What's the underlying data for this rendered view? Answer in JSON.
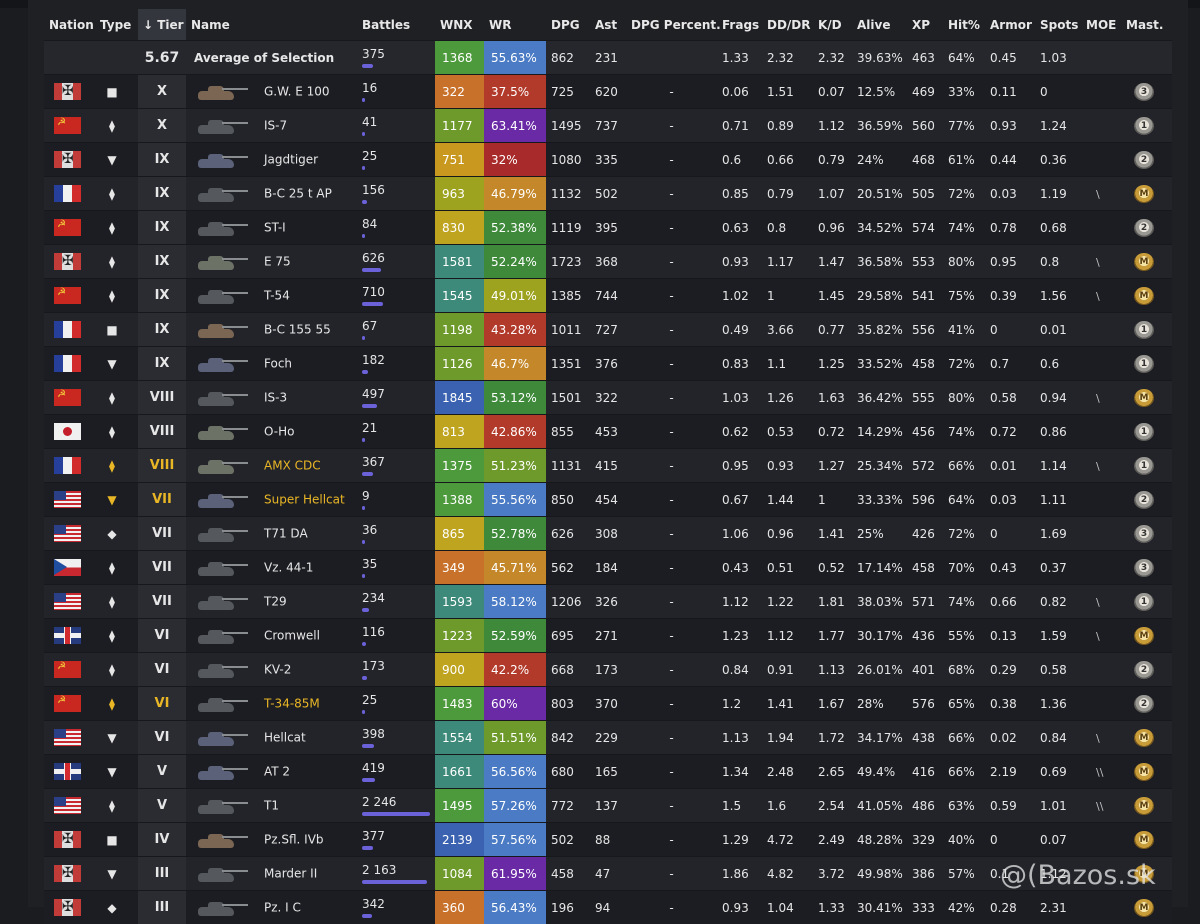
{
  "headers": [
    "Nation",
    "Type",
    "↓ Tier",
    "Name",
    "Battles",
    "WNX",
    "WR",
    "DPG",
    "Ast",
    "DPG Percent.",
    "Frags",
    "DD/DR",
    "K/D",
    "Alive",
    "XP",
    "Hit%",
    "Armor",
    "Spots",
    "MOE",
    "Mast."
  ],
  "average": {
    "tier": "5.67",
    "name": "Average of Selection",
    "battles": "375",
    "wnx": "1368",
    "wr": "55.63%",
    "dpg": "862",
    "ast": "231",
    "frags": "1.33",
    "dddr": "2.32",
    "kd": "2.32",
    "alive": "39.63%",
    "xp": "463",
    "hit": "64%",
    "armor": "0.45",
    "spots": "1.03",
    "wnx_color": "#4d9a3c",
    "wr_color": "#4a7bc4"
  },
  "rows": [
    {
      "nation": "de",
      "type": "■",
      "type_gold": false,
      "tier": "X",
      "name": "G.W. E 100",
      "gold": false,
      "tank": "t-brown",
      "battles": "16",
      "wnx": "322",
      "wr": "37.5%",
      "dpg": "725",
      "ast": "620",
      "dpgp": "-",
      "frags": "0.06",
      "dddr": "1.51",
      "kd": "0.07",
      "alive": "12.5%",
      "xp": "469",
      "hit": "33%",
      "armor": "0.11",
      "spots": "0",
      "moe": "",
      "mast": "3",
      "wnx_color": "#c8712a",
      "wr_color": "#b23a2a"
    },
    {
      "nation": "su",
      "type": "⧫",
      "type_gold": false,
      "tier": "X",
      "name": "IS-7",
      "gold": false,
      "tank": "t-dark",
      "battles": "41",
      "wnx": "1177",
      "wr": "63.41%",
      "dpg": "1495",
      "ast": "737",
      "dpgp": "-",
      "frags": "0.71",
      "dddr": "0.89",
      "kd": "1.12",
      "alive": "36.59%",
      "xp": "560",
      "hit": "77%",
      "armor": "0.93",
      "spots": "1.24",
      "moe": "",
      "mast": "1",
      "wnx_color": "#6e9a2c",
      "wr_color": "#6a2aa6"
    },
    {
      "nation": "de",
      "type": "▼",
      "type_gold": false,
      "tier": "IX",
      "name": "Jagdtiger",
      "gold": false,
      "tank": "t-blue",
      "battles": "25",
      "wnx": "751",
      "wr": "32%",
      "dpg": "1080",
      "ast": "335",
      "dpgp": "-",
      "frags": "0.6",
      "dddr": "0.66",
      "kd": "0.79",
      "alive": "24%",
      "xp": "468",
      "hit": "61%",
      "armor": "0.44",
      "spots": "0.36",
      "moe": "",
      "mast": "2",
      "wnx_color": "#c9981f",
      "wr_color": "#a82a2a"
    },
    {
      "nation": "fr",
      "type": "⧫",
      "type_gold": false,
      "tier": "IX",
      "name": "B-C 25 t AP",
      "gold": false,
      "tank": "t-dark",
      "battles": "156",
      "wnx": "963",
      "wr": "46.79%",
      "dpg": "1132",
      "ast": "502",
      "dpgp": "-",
      "frags": "0.85",
      "dddr": "0.79",
      "kd": "1.07",
      "alive": "20.51%",
      "xp": "505",
      "hit": "72%",
      "armor": "0.03",
      "spots": "1.19",
      "moe": "\\",
      "mast": "M",
      "wnx_color": "#9da21f",
      "wr_color": "#c4872a"
    },
    {
      "nation": "su",
      "type": "⧫",
      "type_gold": false,
      "tier": "IX",
      "name": "ST-I",
      "gold": false,
      "tank": "t-dark",
      "battles": "84",
      "wnx": "830",
      "wr": "52.38%",
      "dpg": "1119",
      "ast": "395",
      "dpgp": "-",
      "frags": "0.63",
      "dddr": "0.8",
      "kd": "0.96",
      "alive": "34.52%",
      "xp": "574",
      "hit": "74%",
      "armor": "0.78",
      "spots": "0.68",
      "moe": "",
      "mast": "2",
      "wnx_color": "#bfa420",
      "wr_color": "#3e8a3a"
    },
    {
      "nation": "de",
      "type": "⧫",
      "type_gold": false,
      "tier": "IX",
      "name": "E 75",
      "gold": false,
      "tank": "t-green",
      "battles": "626",
      "wnx": "1581",
      "wr": "52.24%",
      "dpg": "1723",
      "ast": "368",
      "dpgp": "-",
      "frags": "0.93",
      "dddr": "1.17",
      "kd": "1.47",
      "alive": "36.58%",
      "xp": "553",
      "hit": "80%",
      "armor": "0.95",
      "spots": "0.8",
      "moe": "\\",
      "mast": "M",
      "wnx_color": "#3e8a7a",
      "wr_color": "#3e8a3a"
    },
    {
      "nation": "su",
      "type": "⧫",
      "type_gold": false,
      "tier": "IX",
      "name": "T-54",
      "gold": false,
      "tank": "t-dark",
      "battles": "710",
      "wnx": "1545",
      "wr": "49.01%",
      "dpg": "1385",
      "ast": "744",
      "dpgp": "-",
      "frags": "1.02",
      "dddr": "1",
      "kd": "1.45",
      "alive": "29.58%",
      "xp": "541",
      "hit": "75%",
      "armor": "0.39",
      "spots": "1.56",
      "moe": "\\",
      "mast": "M",
      "wnx_color": "#3e8a7a",
      "wr_color": "#9da21f"
    },
    {
      "nation": "fr",
      "type": "■",
      "type_gold": false,
      "tier": "IX",
      "name": "B-C 155 55",
      "gold": false,
      "tank": "t-brown",
      "battles": "67",
      "wnx": "1198",
      "wr": "43.28%",
      "dpg": "1011",
      "ast": "727",
      "dpgp": "-",
      "frags": "0.49",
      "dddr": "3.66",
      "kd": "0.77",
      "alive": "35.82%",
      "xp": "556",
      "hit": "41%",
      "armor": "0",
      "spots": "0.01",
      "moe": "",
      "mast": "1",
      "wnx_color": "#6e9a2c",
      "wr_color": "#b23a2a"
    },
    {
      "nation": "fr",
      "type": "▼",
      "type_gold": false,
      "tier": "IX",
      "name": "Foch",
      "gold": false,
      "tank": "t-blue",
      "battles": "182",
      "wnx": "1126",
      "wr": "46.7%",
      "dpg": "1351",
      "ast": "376",
      "dpgp": "-",
      "frags": "0.83",
      "dddr": "1.1",
      "kd": "1.25",
      "alive": "33.52%",
      "xp": "458",
      "hit": "72%",
      "armor": "0.7",
      "spots": "0.6",
      "moe": "",
      "mast": "1",
      "wnx_color": "#6e9a2c",
      "wr_color": "#c4872a"
    },
    {
      "nation": "su",
      "type": "⧫",
      "type_gold": false,
      "tier": "VIII",
      "name": "IS-3",
      "gold": false,
      "tank": "t-dark",
      "battles": "497",
      "wnx": "1845",
      "wr": "53.12%",
      "dpg": "1501",
      "ast": "322",
      "dpgp": "-",
      "frags": "1.03",
      "dddr": "1.26",
      "kd": "1.63",
      "alive": "36.42%",
      "xp": "555",
      "hit": "80%",
      "armor": "0.58",
      "spots": "0.94",
      "moe": "\\",
      "mast": "M",
      "wnx_color": "#3a62b0",
      "wr_color": "#3e8a3a"
    },
    {
      "nation": "jp",
      "type": "⧫",
      "type_gold": false,
      "tier": "VIII",
      "name": "O-Ho",
      "gold": false,
      "tank": "t-green",
      "battles": "21",
      "wnx": "813",
      "wr": "42.86%",
      "dpg": "855",
      "ast": "453",
      "dpgp": "-",
      "frags": "0.62",
      "dddr": "0.53",
      "kd": "0.72",
      "alive": "14.29%",
      "xp": "456",
      "hit": "74%",
      "armor": "0.72",
      "spots": "0.86",
      "moe": "",
      "mast": "1",
      "wnx_color": "#bfa420",
      "wr_color": "#b23a2a"
    },
    {
      "nation": "fr",
      "type": "⧫",
      "type_gold": true,
      "tier": "VIII",
      "name": "AMX CDC",
      "gold": true,
      "tank": "t-green",
      "battles": "367",
      "wnx": "1375",
      "wr": "51.23%",
      "dpg": "1131",
      "ast": "415",
      "dpgp": "-",
      "frags": "0.95",
      "dddr": "0.93",
      "kd": "1.27",
      "alive": "25.34%",
      "xp": "572",
      "hit": "66%",
      "armor": "0.01",
      "spots": "1.14",
      "moe": "\\",
      "mast": "1",
      "wnx_color": "#4d9a3c",
      "wr_color": "#6e9a2c"
    },
    {
      "nation": "us",
      "type": "▼",
      "type_gold": true,
      "tier": "VII",
      "name": "Super Hellcat",
      "gold": true,
      "tank": "t-blue",
      "battles": "9",
      "wnx": "1388",
      "wr": "55.56%",
      "dpg": "850",
      "ast": "454",
      "dpgp": "-",
      "frags": "0.67",
      "dddr": "1.44",
      "kd": "1",
      "alive": "33.33%",
      "xp": "596",
      "hit": "64%",
      "armor": "0.03",
      "spots": "1.11",
      "moe": "",
      "mast": "2",
      "wnx_color": "#4d9a3c",
      "wr_color": "#4a7bc4"
    },
    {
      "nation": "us",
      "type": "◆",
      "type_gold": false,
      "tier": "VII",
      "name": "T71 DA",
      "gold": false,
      "tank": "t-dark",
      "battles": "36",
      "wnx": "865",
      "wr": "52.78%",
      "dpg": "626",
      "ast": "308",
      "dpgp": "-",
      "frags": "1.06",
      "dddr": "0.96",
      "kd": "1.41",
      "alive": "25%",
      "xp": "426",
      "hit": "72%",
      "armor": "0",
      "spots": "1.69",
      "moe": "",
      "mast": "3",
      "wnx_color": "#bfa420",
      "wr_color": "#3e8a3a"
    },
    {
      "nation": "cz",
      "type": "⧫",
      "type_gold": false,
      "tier": "VII",
      "name": "Vz. 44-1",
      "gold": false,
      "tank": "t-dark",
      "battles": "35",
      "wnx": "349",
      "wr": "45.71%",
      "dpg": "562",
      "ast": "184",
      "dpgp": "-",
      "frags": "0.43",
      "dddr": "0.51",
      "kd": "0.52",
      "alive": "17.14%",
      "xp": "458",
      "hit": "70%",
      "armor": "0.43",
      "spots": "0.37",
      "moe": "",
      "mast": "3",
      "wnx_color": "#c8712a",
      "wr_color": "#c4872a"
    },
    {
      "nation": "us",
      "type": "⧫",
      "type_gold": false,
      "tier": "VII",
      "name": "T29",
      "gold": false,
      "tank": "t-dark",
      "battles": "234",
      "wnx": "1593",
      "wr": "58.12%",
      "dpg": "1206",
      "ast": "326",
      "dpgp": "-",
      "frags": "1.12",
      "dddr": "1.22",
      "kd": "1.81",
      "alive": "38.03%",
      "xp": "571",
      "hit": "74%",
      "armor": "0.66",
      "spots": "0.82",
      "moe": "\\",
      "mast": "1",
      "wnx_color": "#3e8a7a",
      "wr_color": "#4a7bc4"
    },
    {
      "nation": "uk",
      "type": "⧫",
      "type_gold": false,
      "tier": "VI",
      "name": "Cromwell",
      "gold": false,
      "tank": "t-dark",
      "battles": "116",
      "wnx": "1223",
      "wr": "52.59%",
      "dpg": "695",
      "ast": "271",
      "dpgp": "-",
      "frags": "1.23",
      "dddr": "1.12",
      "kd": "1.77",
      "alive": "30.17%",
      "xp": "436",
      "hit": "55%",
      "armor": "0.13",
      "spots": "1.59",
      "moe": "\\",
      "mast": "M",
      "wnx_color": "#6e9a2c",
      "wr_color": "#3e8a3a"
    },
    {
      "nation": "su",
      "type": "⧫",
      "type_gold": false,
      "tier": "VI",
      "name": "KV-2",
      "gold": false,
      "tank": "t-dark",
      "battles": "173",
      "wnx": "900",
      "wr": "42.2%",
      "dpg": "668",
      "ast": "173",
      "dpgp": "-",
      "frags": "0.84",
      "dddr": "0.91",
      "kd": "1.13",
      "alive": "26.01%",
      "xp": "401",
      "hit": "68%",
      "armor": "0.29",
      "spots": "0.58",
      "moe": "",
      "mast": "2",
      "wnx_color": "#bfa420",
      "wr_color": "#b23a2a"
    },
    {
      "nation": "su",
      "type": "⧫",
      "type_gold": true,
      "tier": "VI",
      "name": "T-34-85M",
      "gold": true,
      "tank": "t-dark",
      "battles": "25",
      "wnx": "1483",
      "wr": "60%",
      "dpg": "803",
      "ast": "370",
      "dpgp": "-",
      "frags": "1.2",
      "dddr": "1.41",
      "kd": "1.67",
      "alive": "28%",
      "xp": "576",
      "hit": "65%",
      "armor": "0.38",
      "spots": "1.36",
      "moe": "",
      "mast": "2",
      "wnx_color": "#4d9a3c",
      "wr_color": "#6a2aa6"
    },
    {
      "nation": "us",
      "type": "▼",
      "type_gold": false,
      "tier": "VI",
      "name": "Hellcat",
      "gold": false,
      "tank": "t-blue",
      "battles": "398",
      "wnx": "1554",
      "wr": "51.51%",
      "dpg": "842",
      "ast": "229",
      "dpgp": "-",
      "frags": "1.13",
      "dddr": "1.94",
      "kd": "1.72",
      "alive": "34.17%",
      "xp": "438",
      "hit": "66%",
      "armor": "0.02",
      "spots": "0.84",
      "moe": "\\",
      "mast": "M",
      "wnx_color": "#3e8a7a",
      "wr_color": "#6e9a2c"
    },
    {
      "nation": "uk",
      "type": "▼",
      "type_gold": false,
      "tier": "V",
      "name": "AT 2",
      "gold": false,
      "tank": "t-blue",
      "battles": "419",
      "wnx": "1661",
      "wr": "56.56%",
      "dpg": "680",
      "ast": "165",
      "dpgp": "-",
      "frags": "1.34",
      "dddr": "2.48",
      "kd": "2.65",
      "alive": "49.4%",
      "xp": "416",
      "hit": "66%",
      "armor": "2.19",
      "spots": "0.69",
      "moe": "\\\\",
      "mast": "M",
      "wnx_color": "#3e8a7a",
      "wr_color": "#4a7bc4"
    },
    {
      "nation": "us",
      "type": "⧫",
      "type_gold": false,
      "tier": "V",
      "name": "T1",
      "gold": false,
      "tank": "t-dark",
      "battles": "2 246",
      "wnx": "1495",
      "wr": "57.26%",
      "dpg": "772",
      "ast": "137",
      "dpgp": "-",
      "frags": "1.5",
      "dddr": "1.6",
      "kd": "2.54",
      "alive": "41.05%",
      "xp": "486",
      "hit": "63%",
      "armor": "0.59",
      "spots": "1.01",
      "moe": "\\\\",
      "mast": "M",
      "wnx_color": "#4d9a3c",
      "wr_color": "#4a7bc4"
    },
    {
      "nation": "de",
      "type": "■",
      "type_gold": false,
      "tier": "IV",
      "name": "Pz.Sfl. IVb",
      "gold": false,
      "tank": "t-brown",
      "battles": "377",
      "wnx": "2139",
      "wr": "57.56%",
      "dpg": "502",
      "ast": "88",
      "dpgp": "-",
      "frags": "1.29",
      "dddr": "4.72",
      "kd": "2.49",
      "alive": "48.28%",
      "xp": "329",
      "hit": "40%",
      "armor": "0",
      "spots": "0.07",
      "moe": "",
      "mast": "M",
      "wnx_color": "#3a62b0",
      "wr_color": "#4a7bc4"
    },
    {
      "nation": "de",
      "type": "▼",
      "type_gold": false,
      "tier": "III",
      "name": "Marder II",
      "gold": false,
      "tank": "t-dark",
      "battles": "2 163",
      "wnx": "1084",
      "wr": "61.95%",
      "dpg": "458",
      "ast": "47",
      "dpgp": "-",
      "frags": "1.86",
      "dddr": "4.82",
      "kd": "3.72",
      "alive": "49.98%",
      "xp": "386",
      "hit": "57%",
      "armor": "0.1",
      "spots": "1.12",
      "moe": "",
      "mast": "M",
      "wnx_color": "#6e9a2c",
      "wr_color": "#6a2aa6"
    },
    {
      "nation": "de",
      "type": "◆",
      "type_gold": false,
      "tier": "III",
      "name": "Pz. I C",
      "gold": false,
      "tank": "t-dark",
      "battles": "342",
      "wnx": "360",
      "wr": "56.43%",
      "dpg": "196",
      "ast": "94",
      "dpgp": "-",
      "frags": "0.93",
      "dddr": "1.04",
      "kd": "1.33",
      "alive": "30.41%",
      "xp": "333",
      "hit": "42%",
      "armor": "0.28",
      "spots": "2.31",
      "moe": "",
      "mast": "M",
      "wnx_color": "#c8712a",
      "wr_color": "#4a7bc4"
    }
  ],
  "battles_max": 2246,
  "watermark": "@(Bazos.sk"
}
